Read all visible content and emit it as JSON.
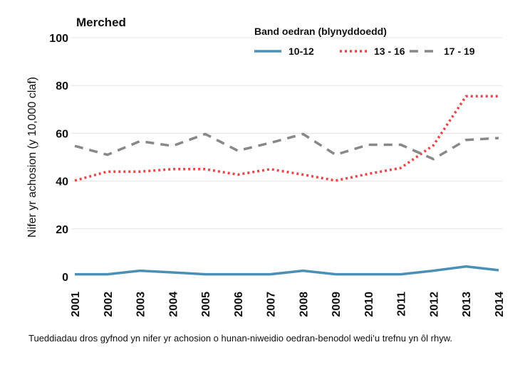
{
  "caption": "Tueddiadau dros gyfnod yn nifer yr achosion o hunan-niweidio oedran-benodol wedi’u trefnu yn ôl rhyw.",
  "chart_data": {
    "type": "line",
    "title": "Merched",
    "ylabel": "Nifer yr achosion (y 10,000 claf)",
    "xlabel": "",
    "ylim": [
      0,
      100
    ],
    "yticks": [
      0,
      20,
      40,
      60,
      80,
      100
    ],
    "grid": true,
    "legend": {
      "title": "Band oedran (blynyddoedd)",
      "placement": "top-right"
    },
    "categories": [
      "2001",
      "2002",
      "2003",
      "2004",
      "2005",
      "2006",
      "2007",
      "2008",
      "2009",
      "2010",
      "2011",
      "2012",
      "2013",
      "2014"
    ],
    "series": [
      {
        "name": "10-12",
        "color": "#4a8fb8",
        "style": "solid",
        "values": [
          1,
          1,
          2.5,
          1.8,
          1,
          1,
          1,
          2.5,
          1,
          1,
          1,
          2.5,
          4.3,
          2.7
        ]
      },
      {
        "name": "13 - 16",
        "color": "#e8474a",
        "style": "dotted",
        "values": [
          40.2,
          44,
          44,
          45,
          45,
          42.7,
          45,
          42.7,
          40.2,
          43,
          45.5,
          55,
          75.5,
          75.5
        ]
      },
      {
        "name": "17 - 19",
        "color": "#888888",
        "style": "dashed",
        "values": [
          54.7,
          51,
          56.7,
          54.7,
          59.7,
          52.7,
          56,
          59.7,
          51,
          55.2,
          55.2,
          49.2,
          57.2,
          58
        ]
      }
    ]
  }
}
